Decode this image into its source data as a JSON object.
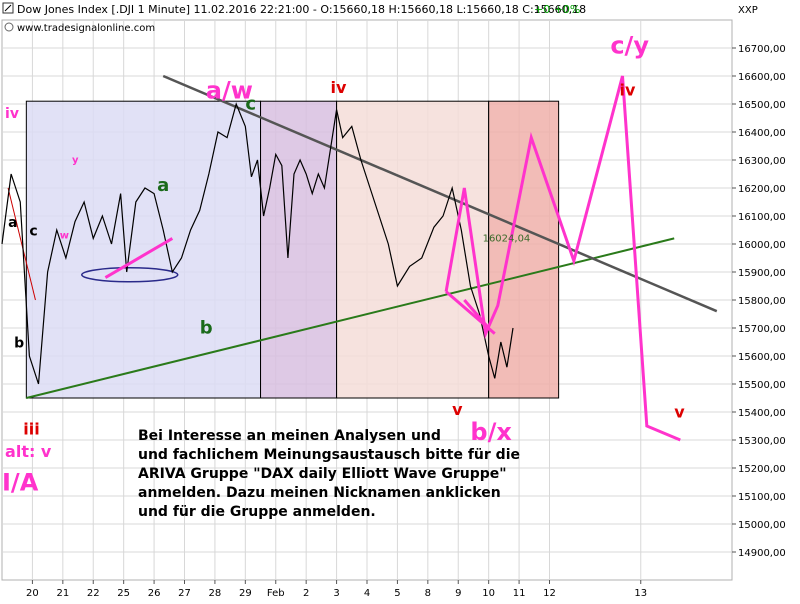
{
  "header": {
    "title": "Dow Jones Index [.DJI  1 Minute] 11.02.2016 22:21:00 - O:15660,18 H:15660,18 L:15660,18 C:15660,18",
    "change": "+0 +0%",
    "website": "www.tradesignalonline.com",
    "axis_unit": "XXP"
  },
  "colors": {
    "price_line": "#000000",
    "projection": "#ff33cc",
    "trend_green": "#2a7a1a",
    "resistance_gray": "#555555",
    "box_blue": "#dcdcf5",
    "box_purple": "#d8c0e0",
    "box_pink": "#f5ddd8",
    "box_red": "#f0b0aa",
    "label_green": "#1a6a1a",
    "label_red": "#dd0000",
    "label_magenta": "#ff33cc"
  },
  "chart_data": {
    "type": "line",
    "title": "Dow Jones Index [.DJI  1 Minute]",
    "ylim": [
      14800,
      16800
    ],
    "y_ticks": [
      14900,
      15000,
      15100,
      15200,
      15300,
      15400,
      15500,
      15600,
      15700,
      15800,
      15900,
      16000,
      16100,
      16200,
      16300,
      16400,
      16500,
      16600,
      16700
    ],
    "y_tick_labels": [
      "14900,00",
      "15000,00",
      "15100,00",
      "15200,00",
      "15300,00",
      "15400,00",
      "15500,00",
      "15600,00",
      "15700,00",
      "15800,00",
      "15900,00",
      "16000,00",
      "16100,00",
      "16200,00",
      "16300,00",
      "16400,00",
      "16500,00",
      "16600,00",
      "16700,00"
    ],
    "x_tick_labels": [
      "20",
      "21",
      "22",
      "25",
      "26",
      "27",
      "28",
      "29",
      "Feb",
      "2",
      "3",
      "4",
      "5",
      "8",
      "9",
      "10",
      "11",
      "12",
      "13"
    ],
    "x_ticks_idx": [
      1,
      2,
      3,
      4,
      5,
      6,
      7,
      8,
      9,
      10,
      11,
      12,
      13,
      14,
      15,
      16,
      17,
      18,
      21
    ],
    "x_range": [
      0,
      24
    ],
    "grid": true,
    "price_label": "16024,04",
    "price_series": [
      [
        0,
        16000
      ],
      [
        0.3,
        16250
      ],
      [
        0.6,
        16150
      ],
      [
        0.9,
        15600
      ],
      [
        1.2,
        15500
      ],
      [
        1.5,
        15900
      ],
      [
        1.8,
        16050
      ],
      [
        2.1,
        15950
      ],
      [
        2.4,
        16080
      ],
      [
        2.7,
        16150
      ],
      [
        3.0,
        16020
      ],
      [
        3.3,
        16100
      ],
      [
        3.6,
        16000
      ],
      [
        3.9,
        16180
      ],
      [
        4.1,
        15900
      ],
      [
        4.4,
        16150
      ],
      [
        4.7,
        16200
      ],
      [
        5.0,
        16180
      ],
      [
        5.3,
        16050
      ],
      [
        5.6,
        15900
      ],
      [
        5.9,
        15950
      ],
      [
        6.2,
        16050
      ],
      [
        6.5,
        16120
      ],
      [
        6.8,
        16250
      ],
      [
        7.1,
        16400
      ],
      [
        7.4,
        16380
      ],
      [
        7.7,
        16500
      ],
      [
        8.0,
        16420
      ],
      [
        8.2,
        16240
      ],
      [
        8.4,
        16300
      ],
      [
        8.6,
        16100
      ],
      [
        8.8,
        16200
      ],
      [
        9.0,
        16320
      ],
      [
        9.2,
        16280
      ],
      [
        9.4,
        15950
      ],
      [
        9.6,
        16250
      ],
      [
        9.8,
        16300
      ],
      [
        10.0,
        16250
      ],
      [
        10.2,
        16180
      ],
      [
        10.4,
        16250
      ],
      [
        10.6,
        16200
      ],
      [
        11.0,
        16480
      ],
      [
        11.2,
        16380
      ],
      [
        11.5,
        16420
      ],
      [
        11.8,
        16300
      ],
      [
        12.1,
        16200
      ],
      [
        12.4,
        16100
      ],
      [
        12.7,
        16000
      ],
      [
        13.0,
        15850
      ],
      [
        13.4,
        15920
      ],
      [
        13.8,
        15950
      ],
      [
        14.2,
        16060
      ],
      [
        14.5,
        16100
      ],
      [
        14.8,
        16200
      ],
      [
        15.1,
        16050
      ],
      [
        15.4,
        15850
      ],
      [
        15.7,
        15750
      ],
      [
        16.0,
        15600
      ],
      [
        16.2,
        15520
      ],
      [
        16.4,
        15650
      ],
      [
        16.6,
        15560
      ],
      [
        16.8,
        15700
      ]
    ],
    "projection_segments": [
      [
        [
          3.4,
          15880
        ],
        [
          5.6,
          16020
        ]
      ],
      [
        [
          15.2,
          15800
        ],
        [
          16.0,
          15700
        ]
      ],
      [
        [
          14.6,
          15830
        ],
        [
          16.2,
          15680
        ]
      ]
    ],
    "projection_path": [
      [
        14.6,
        15830
      ],
      [
        15.2,
        16200
      ],
      [
        15.9,
        15680
      ],
      [
        16.3,
        15780
      ],
      [
        17.4,
        16380
      ],
      [
        18.8,
        15940
      ],
      [
        20.4,
        16600
      ],
      [
        21.2,
        15350
      ],
      [
        22.3,
        15300
      ]
    ],
    "trend_green": [
      [
        0.8,
        15450
      ],
      [
        22.1,
        16020
      ]
    ],
    "resistance_gray": [
      [
        5.3,
        16600
      ],
      [
        23.5,
        15760
      ]
    ],
    "boxes": [
      {
        "x0": 0.8,
        "x1": 8.5,
        "y0": 15450,
        "y1": 16510,
        "kind": "box_blue"
      },
      {
        "x0": 8.5,
        "x1": 11.0,
        "y0": 15450,
        "y1": 16510,
        "kind": "box_purple"
      },
      {
        "x0": 11.0,
        "x1": 16.0,
        "y0": 15450,
        "y1": 16510,
        "kind": "box_pink"
      },
      {
        "x0": 16.0,
        "x1": 18.3,
        "y0": 15450,
        "y1": 16510,
        "kind": "box_red"
      }
    ],
    "wave_labels": [
      {
        "text": "iv",
        "x": 0.1,
        "y": 16450,
        "color": "label_magenta",
        "size": 14
      },
      {
        "text": "a",
        "x": 0.2,
        "y": 16060,
        "color": "label_black",
        "size": 14
      },
      {
        "text": "c",
        "x": 0.9,
        "y": 16030,
        "color": "label_black",
        "size": 14
      },
      {
        "text": "b",
        "x": 0.4,
        "y": 15630,
        "color": "label_black",
        "size": 14
      },
      {
        "text": "y",
        "x": 2.3,
        "y": 16290,
        "color": "label_magenta",
        "size": 10
      },
      {
        "text": "w",
        "x": 1.9,
        "y": 16020,
        "color": "label_magenta",
        "size": 10
      },
      {
        "text": "a",
        "x": 5.1,
        "y": 16190,
        "color": "label_green",
        "size": 18
      },
      {
        "text": "b",
        "x": 6.5,
        "y": 15680,
        "color": "label_green",
        "size": 18
      },
      {
        "text": "c",
        "x": 8.0,
        "y": 16480,
        "color": "label_green",
        "size": 18
      },
      {
        "text": "a/w",
        "x": 6.7,
        "y": 16520,
        "color": "label_magenta",
        "size": 24
      },
      {
        "text": "iv",
        "x": 10.8,
        "y": 16540,
        "color": "label_red",
        "size": 16
      },
      {
        "text": "v",
        "x": 14.8,
        "y": 15390,
        "color": "label_red",
        "size": 16
      },
      {
        "text": "b/x",
        "x": 15.4,
        "y": 15300,
        "color": "label_magenta",
        "size": 24
      },
      {
        "text": "c/y",
        "x": 20.0,
        "y": 16680,
        "color": "label_magenta",
        "size": 24
      },
      {
        "text": "iv",
        "x": 20.3,
        "y": 16530,
        "color": "label_red",
        "size": 16
      },
      {
        "text": "v",
        "x": 22.1,
        "y": 15380,
        "color": "label_red",
        "size": 16
      },
      {
        "text": "iii",
        "x": 0.7,
        "y": 15320,
        "color": "label_red",
        "size": 16
      },
      {
        "text": "alt: v",
        "x": 0.1,
        "y": 15240,
        "color": "label_magenta",
        "size": 16
      },
      {
        "text": "I/A",
        "x": 0.0,
        "y": 15120,
        "color": "label_magenta",
        "size": 24
      }
    ],
    "note_lines": [
      "Bei Interesse an meinen Analysen und",
      "und fachlichem Meinungsaustausch bitte für die",
      "ARIVA Gruppe \"DAX daily Elliott Wave Gruppe\"",
      "anmelden. Dazu meinen Nicknamen anklicken",
      "und für die Gruppe anmelden."
    ]
  }
}
